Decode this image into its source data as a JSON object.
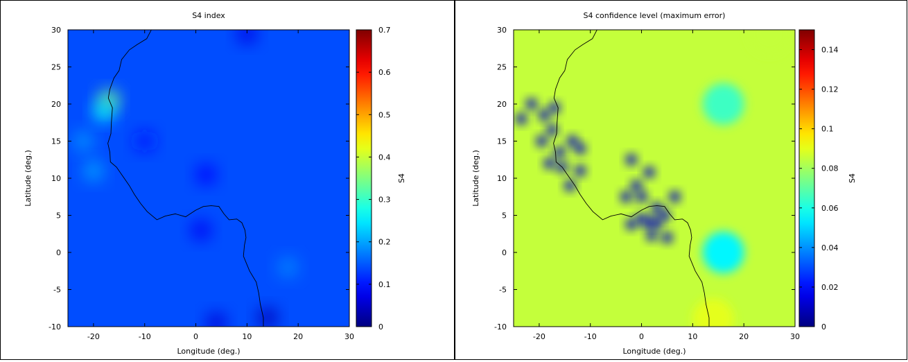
{
  "chart_data": [
    {
      "type": "heatmap",
      "title": "S4 index",
      "xlabel": "Longitude (deg.)",
      "ylabel": "Latitude (deg.)",
      "colorbar_label": "S4",
      "xlim": [
        -25,
        30
      ],
      "ylim": [
        -10,
        30
      ],
      "xticks": [
        -20,
        -10,
        0,
        10,
        20,
        30
      ],
      "yticks": [
        -10,
        -5,
        0,
        5,
        10,
        15,
        20,
        25,
        30
      ],
      "xtick_labels": [
        "-20",
        "-10",
        "0",
        "10",
        "20",
        "30"
      ],
      "ytick_labels": [
        "-10",
        "-5",
        "0",
        "5",
        "10",
        "15",
        "20",
        "25",
        "30"
      ],
      "colorbar_range": [
        0,
        0.7
      ],
      "colorbar_ticks": [
        0,
        0.1,
        0.2,
        0.3,
        0.4,
        0.5,
        0.6,
        0.7
      ],
      "colorbar_tick_labels": [
        "0",
        "0.1",
        "0.2",
        "0.3",
        "0.4",
        "0.5",
        "0.6",
        "0.7"
      ],
      "colormap": "jet",
      "background_value": 0.14,
      "features": [
        {
          "lon": -17,
          "lat": 20.5,
          "value": 0.35
        },
        {
          "lon": -18,
          "lat": 19,
          "value": 0.26
        },
        {
          "lon": -20,
          "lat": 11,
          "value": 0.2
        },
        {
          "lon": -22,
          "lat": 15,
          "value": 0.19
        },
        {
          "lon": 18,
          "lat": -2,
          "value": 0.18
        },
        {
          "lon": 1,
          "lat": 3,
          "value": 0.08
        },
        {
          "lon": 2,
          "lat": 10.5,
          "value": 0.09
        },
        {
          "lon": -10,
          "lat": 15,
          "value": 0.1
        },
        {
          "lon": 14,
          "lat": -8.8,
          "value": 0.04
        },
        {
          "lon": 4,
          "lat": -9.5,
          "value": 0.06
        },
        {
          "lon": 10,
          "lat": 29.5,
          "value": 0.07
        }
      ]
    },
    {
      "type": "heatmap",
      "title": "S4 confidence level (maximum error)",
      "xlabel": "Longitude (deg.)",
      "ylabel": "Latitude (deg.)",
      "colorbar_label": "S4",
      "xlim": [
        -25,
        30
      ],
      "ylim": [
        -10,
        30
      ],
      "xticks": [
        -20,
        -10,
        0,
        10,
        20,
        30
      ],
      "yticks": [
        -10,
        -5,
        0,
        5,
        10,
        15,
        20,
        25,
        30
      ],
      "xtick_labels": [
        "-20",
        "-10",
        "0",
        "10",
        "20",
        "30"
      ],
      "ytick_labels": [
        "-10",
        "-5",
        "0",
        "5",
        "10",
        "15",
        "20",
        "25",
        "30"
      ],
      "colorbar_range": [
        0,
        0.15
      ],
      "colorbar_ticks": [
        0,
        0.02,
        0.04,
        0.06,
        0.08,
        0.1,
        0.12,
        0.14
      ],
      "colorbar_tick_labels": [
        "0",
        "0.02",
        "0.04",
        "0.06",
        "0.08",
        "0.1",
        "0.12",
        "0.14"
      ],
      "colormap": "jet",
      "background_value": 0.085,
      "receivers": [
        {
          "lon": -23.5,
          "lat": 18,
          "value": 0.01
        },
        {
          "lon": -21.5,
          "lat": 20,
          "value": 0.01
        },
        {
          "lon": -19,
          "lat": 18.5,
          "value": 0.01
        },
        {
          "lon": -17,
          "lat": 19.5,
          "value": 0.01
        },
        {
          "lon": -17.5,
          "lat": 16.5,
          "value": 0.01
        },
        {
          "lon": -19.5,
          "lat": 15,
          "value": 0.01
        },
        {
          "lon": -16,
          "lat": 13.5,
          "value": 0.01
        },
        {
          "lon": -18,
          "lat": 12,
          "value": 0.01
        },
        {
          "lon": -15.5,
          "lat": 11.5,
          "value": 0.01
        },
        {
          "lon": -13.5,
          "lat": 15,
          "value": 0.01
        },
        {
          "lon": -12,
          "lat": 14,
          "value": 0.01
        },
        {
          "lon": -12,
          "lat": 11,
          "value": 0.01
        },
        {
          "lon": -14,
          "lat": 9,
          "value": 0.01
        },
        {
          "lon": -2,
          "lat": 12.5,
          "value": 0.01
        },
        {
          "lon": 1.5,
          "lat": 10.8,
          "value": 0.01
        },
        {
          "lon": -1,
          "lat": 9,
          "value": 0.01
        },
        {
          "lon": -3,
          "lat": 7.5,
          "value": 0.01
        },
        {
          "lon": 0,
          "lat": 7.5,
          "value": 0.01
        },
        {
          "lon": 6.5,
          "lat": 7.5,
          "value": 0.01
        },
        {
          "lon": 3,
          "lat": 6,
          "value": 0.01
        },
        {
          "lon": -2,
          "lat": 3.8,
          "value": 0.01
        },
        {
          "lon": 0,
          "lat": 4.5,
          "value": 0.01
        },
        {
          "lon": 1.5,
          "lat": 4,
          "value": 0.01
        },
        {
          "lon": 3,
          "lat": 4,
          "value": 0.01
        },
        {
          "lon": 4.5,
          "lat": 5,
          "value": 0.01
        },
        {
          "lon": 2,
          "lat": 2.3,
          "value": 0.01
        },
        {
          "lon": 5,
          "lat": 2,
          "value": 0.01
        }
      ],
      "regions": [
        {
          "lon": 16,
          "lat": 0,
          "value": 0.055
        },
        {
          "lon": 16,
          "lat": 20,
          "value": 0.065
        },
        {
          "lon": 25,
          "lat": 29.5,
          "value": 0.085
        },
        {
          "lon": 14,
          "lat": -9,
          "value": 0.09
        }
      ]
    }
  ]
}
